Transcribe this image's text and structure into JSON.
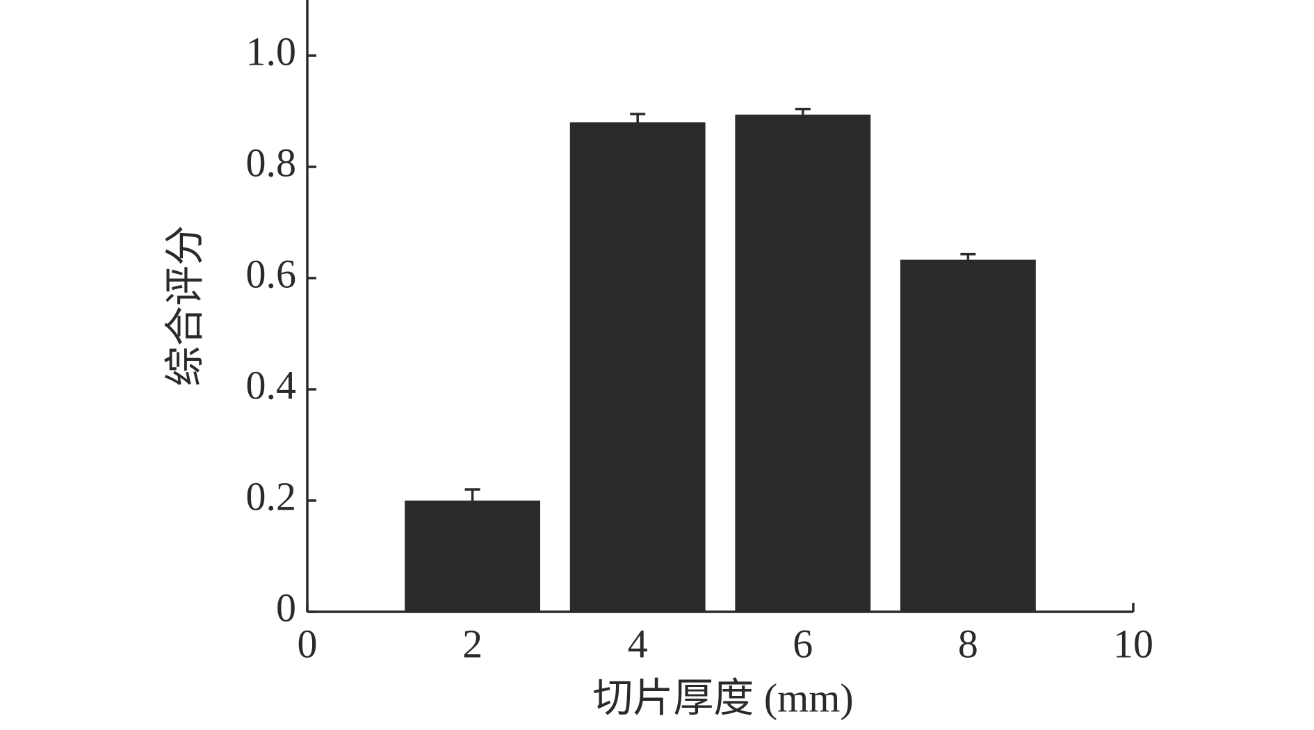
{
  "chart_data": {
    "type": "bar",
    "xlabel": "切片厚度 (mm)",
    "ylabel": "综合评分",
    "x": [
      2,
      4,
      6,
      8
    ],
    "values": [
      0.2,
      0.88,
      0.894,
      0.633
    ],
    "errors": [
      0.02,
      0.015,
      0.01,
      0.01
    ],
    "color": "#2b2a2b",
    "xlim": [
      0,
      10
    ],
    "xticks": [
      0,
      2,
      4,
      6,
      8,
      10
    ],
    "ylim": [
      0,
      1.1
    ],
    "yticks": [
      0,
      0.2,
      0.4,
      0.6,
      0.8,
      {
        "value": 1,
        "label": "1.0"
      }
    ],
    "grid": false
  }
}
